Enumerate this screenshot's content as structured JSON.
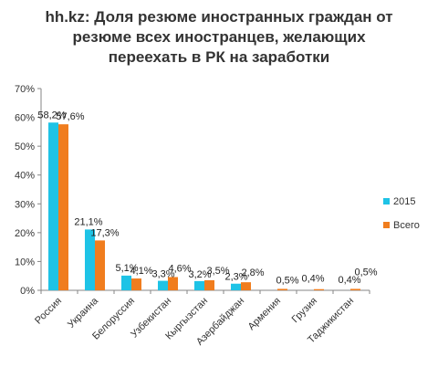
{
  "chart_data": {
    "type": "bar",
    "title_lines": [
      "hh.kz: Доля резюме иностранных граждан от",
      "резюме всех иностранцев, желающих",
      "переехать в РК на заработки"
    ],
    "categories": [
      "Россия",
      "Украина",
      "Белоруссия",
      "Узбекистан",
      "Кыргызстан",
      "Азербайджан",
      "Армения",
      "Грузия",
      "Таджикистан"
    ],
    "series": [
      {
        "name": "2015",
        "color": "#1ec3e6",
        "values": [
          58.2,
          21.1,
          5.1,
          3.3,
          3.2,
          2.3,
          0.0,
          0.0,
          0.0
        ],
        "labels": [
          "58,2%",
          "21,1%",
          "5,1%",
          "3,3%",
          "3,2%",
          "2,3%",
          "",
          "",
          ""
        ]
      },
      {
        "name": "Всего",
        "color": "#f07d1e",
        "values": [
          57.6,
          17.3,
          4.1,
          4.6,
          3.5,
          2.8,
          0.5,
          0.4,
          0.5
        ],
        "labels": [
          "57,6%",
          "17,3%",
          "4,1%",
          "4,6%",
          "3,5%",
          "2,8%",
          "0,5%",
          "0,4%",
          "0,5%"
        ]
      }
    ],
    "extra_labels": [
      {
        "category": "Таджикистан",
        "text": "0,4%"
      }
    ],
    "y_ticks": [
      "0%",
      "10%",
      "20%",
      "30%",
      "40%",
      "50%",
      "60%",
      "70%"
    ],
    "ylim": [
      0,
      70
    ],
    "legend": "right",
    "grid": false
  }
}
